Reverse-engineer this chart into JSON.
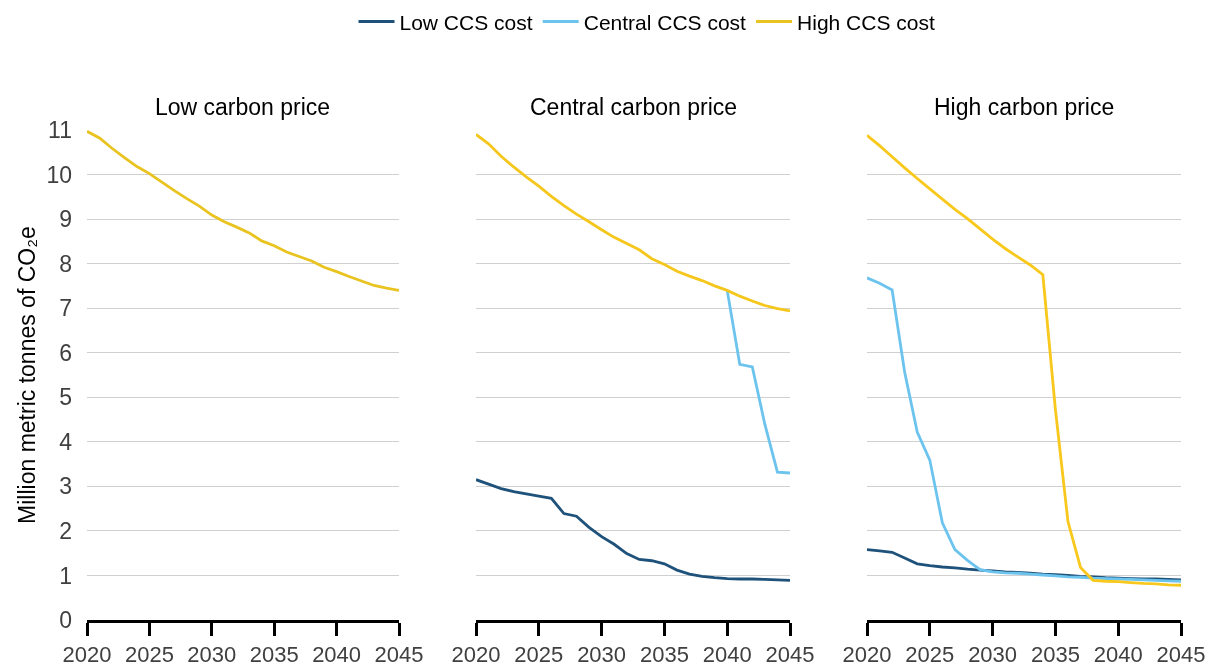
{
  "chart_data": [
    {
      "type": "line",
      "title": "Low carbon price",
      "ylabel": "Million metric tonnes of CO₂e",
      "x": [
        2020,
        2021,
        2022,
        2023,
        2024,
        2025,
        2026,
        2027,
        2028,
        2029,
        2030,
        2031,
        2032,
        2033,
        2034,
        2035,
        2036,
        2037,
        2038,
        2039,
        2040,
        2041,
        2042,
        2043,
        2044,
        2045
      ],
      "xlim": [
        2020,
        2045
      ],
      "xticks": [
        2020,
        2025,
        2030,
        2035,
        2040,
        2045
      ],
      "ylim": [
        0,
        11
      ],
      "yticks": [
        0,
        1,
        2,
        3,
        4,
        5,
        6,
        7,
        8,
        9,
        10,
        11
      ],
      "grid": "y",
      "legend": "top",
      "series": [
        {
          "name": "High CCS cost",
          "color": "#e9c320",
          "values": [
            10.97,
            10.82,
            10.59,
            10.38,
            10.18,
            10.02,
            9.83,
            9.64,
            9.46,
            9.29,
            9.09,
            8.94,
            8.82,
            8.69,
            8.51,
            8.4,
            8.26,
            8.16,
            8.06,
            7.92,
            7.82,
            7.71,
            7.61,
            7.51,
            7.45,
            7.4
          ]
        }
      ]
    },
    {
      "type": "line",
      "title": "Central carbon price",
      "x": [
        2020,
        2021,
        2022,
        2023,
        2024,
        2025,
        2026,
        2027,
        2028,
        2029,
        2030,
        2031,
        2032,
        2033,
        2034,
        2035,
        2036,
        2037,
        2038,
        2039,
        2040,
        2041,
        2042,
        2043,
        2044,
        2045
      ],
      "xlim": [
        2020,
        2045
      ],
      "xticks": [
        2020,
        2025,
        2030,
        2035,
        2040,
        2045
      ],
      "ylim": [
        0,
        11
      ],
      "yticks": [
        0,
        1,
        2,
        3,
        4,
        5,
        6,
        7,
        8,
        9,
        10,
        11
      ],
      "grid": "y",
      "tick_labels": "x",
      "legend": "top",
      "series": [
        {
          "name": "Low CCS cost",
          "color": "#1f527a",
          "values": [
            3.15,
            3.05,
            2.95,
            2.88,
            2.83,
            2.78,
            2.73,
            2.39,
            2.33,
            2.08,
            1.87,
            1.7,
            1.49,
            1.36,
            1.33,
            1.26,
            1.12,
            1.03,
            0.98,
            0.95,
            0.93,
            0.92,
            0.92,
            0.91,
            0.9,
            0.89
          ]
        },
        {
          "name": "Central CCS cost",
          "color": "#6cc4ee",
          "values": [
            null,
            null,
            null,
            null,
            null,
            null,
            null,
            null,
            null,
            null,
            null,
            null,
            null,
            null,
            null,
            null,
            null,
            null,
            null,
            null,
            7.4,
            5.74,
            5.68,
            4.39,
            3.32,
            3.3
          ]
        },
        {
          "name": "High CCS cost",
          "color": "#f5c61c",
          "values": [
            10.9,
            10.69,
            10.41,
            10.17,
            9.95,
            9.74,
            9.51,
            9.3,
            9.11,
            8.94,
            8.76,
            8.59,
            8.45,
            8.31,
            8.11,
            7.98,
            7.83,
            7.72,
            7.62,
            7.5,
            7.4,
            7.27,
            7.16,
            7.06,
            6.99,
            6.94
          ]
        }
      ]
    },
    {
      "type": "line",
      "title": "High carbon price",
      "x": [
        2020,
        2021,
        2022,
        2023,
        2024,
        2025,
        2026,
        2027,
        2028,
        2029,
        2030,
        2031,
        2032,
        2033,
        2034,
        2035,
        2036,
        2037,
        2038,
        2039,
        2040,
        2041,
        2042,
        2043,
        2044,
        2045
      ],
      "xlim": [
        2020,
        2045
      ],
      "xticks": [
        2020,
        2025,
        2030,
        2035,
        2040,
        2045
      ],
      "ylim": [
        0,
        11
      ],
      "yticks": [
        0,
        1,
        2,
        3,
        4,
        5,
        6,
        7,
        8,
        9,
        10,
        11
      ],
      "grid": "y",
      "tick_labels": "x",
      "legend": "top",
      "series": [
        {
          "name": "Low CCS cost",
          "color": "#1f527a",
          "values": [
            1.58,
            1.55,
            1.52,
            1.39,
            1.26,
            1.22,
            1.19,
            1.17,
            1.14,
            1.12,
            1.1,
            1.08,
            1.07,
            1.05,
            1.03,
            1.02,
            1.0,
            0.98,
            0.97,
            0.95,
            0.94,
            0.93,
            0.92,
            0.92,
            0.91,
            0.9
          ]
        },
        {
          "name": "Central CCS cost",
          "color": "#6cc4ee",
          "values": [
            7.68,
            7.56,
            7.41,
            5.56,
            4.22,
            3.59,
            2.18,
            1.58,
            1.34,
            1.13,
            1.08,
            1.06,
            1.05,
            1.03,
            1.01,
            0.99,
            0.97,
            0.96,
            0.94,
            0.93,
            0.92,
            0.91,
            0.9,
            0.89,
            0.88,
            0.87
          ]
        },
        {
          "name": "High CCS cost",
          "color": "#f8c81c",
          "values": [
            10.88,
            10.65,
            10.4,
            10.15,
            9.91,
            9.68,
            9.45,
            9.22,
            9.01,
            8.78,
            8.55,
            8.34,
            8.15,
            7.97,
            7.75,
            4.73,
            2.21,
            1.18,
            0.89,
            0.87,
            0.86,
            0.84,
            0.82,
            0.81,
            0.79,
            0.78
          ]
        }
      ]
    }
  ]
}
